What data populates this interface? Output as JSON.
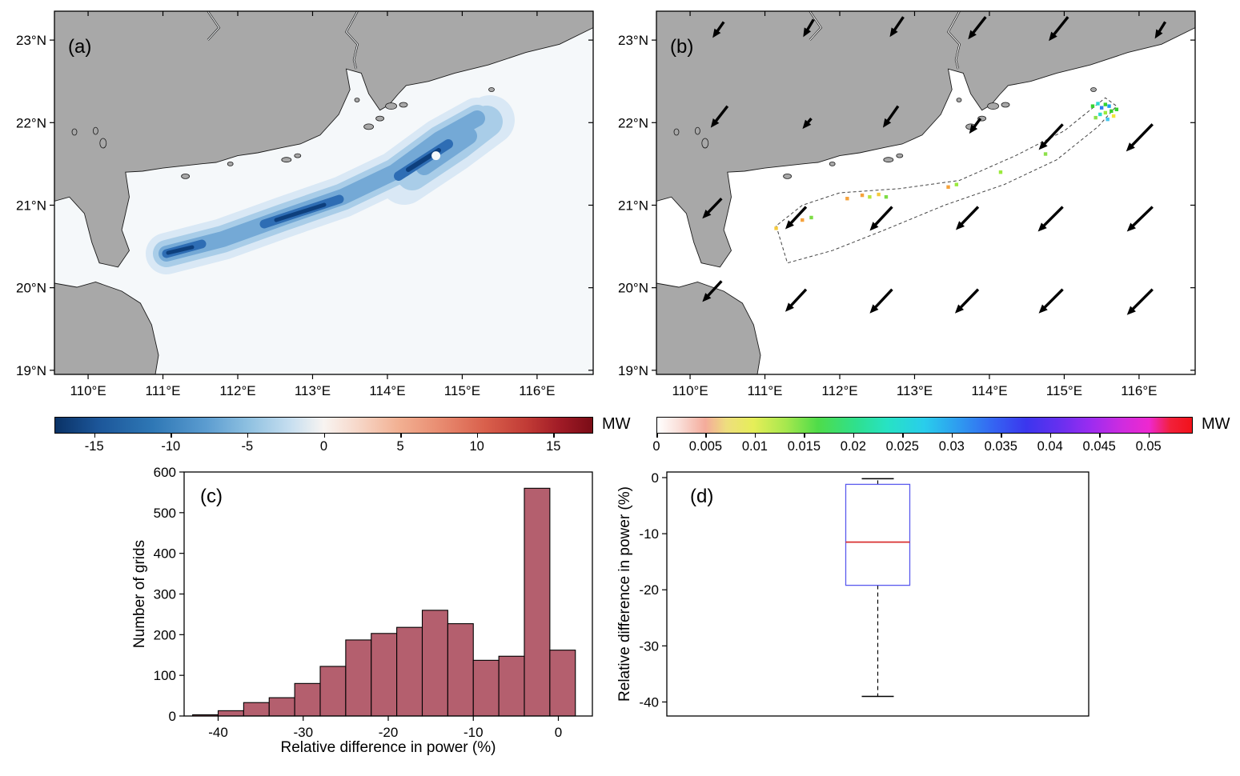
{
  "panels": {
    "a": {
      "label": "(a)"
    },
    "b": {
      "label": "(b)"
    },
    "c": {
      "label": "(c)"
    },
    "d": {
      "label": "(d)"
    }
  },
  "map_axes": {
    "lon_ticks": [
      110,
      111,
      112,
      113,
      114,
      115,
      116
    ],
    "lon_tick_labels": [
      "110°E",
      "111°E",
      "112°E",
      "113°E",
      "114°E",
      "115°E",
      "116°E"
    ],
    "lat_ticks": [
      23,
      22,
      21,
      20,
      19
    ],
    "lat_tick_labels": [
      "23°N",
      "22°N",
      "21°N",
      "20°N",
      "19°N"
    ],
    "lon_range": [
      109.55,
      116.75
    ],
    "lat_range": [
      18.95,
      23.35
    ]
  },
  "colorbars": {
    "a": {
      "unit": "MW",
      "tick_values": [
        -15,
        -10,
        -5,
        0,
        5,
        10,
        15
      ],
      "tick_labels": [
        "-15",
        "-10",
        "-5",
        "0",
        "5",
        "10",
        "15"
      ],
      "vmin": -17.6,
      "vmax": 17.6,
      "style": "diverging blue-white-red",
      "gradient_stops": [
        [
          0,
          "#0a3266"
        ],
        [
          0.08,
          "#1c5699"
        ],
        [
          0.18,
          "#2e77b5"
        ],
        [
          0.28,
          "#5b9cd0"
        ],
        [
          0.36,
          "#8fc1e1"
        ],
        [
          0.44,
          "#c8dff0"
        ],
        [
          0.5,
          "#f8f4f1"
        ],
        [
          0.56,
          "#f7d9cb"
        ],
        [
          0.64,
          "#f2b092"
        ],
        [
          0.72,
          "#e88a6f"
        ],
        [
          0.8,
          "#d9604c"
        ],
        [
          0.88,
          "#c03a35"
        ],
        [
          0.94,
          "#a01b26"
        ],
        [
          1,
          "#7a0c16"
        ]
      ]
    },
    "b": {
      "unit": "MW",
      "tick_values": [
        0,
        0.005,
        0.01,
        0.015,
        0.02,
        0.025,
        0.03,
        0.035,
        0.04,
        0.045,
        0.05
      ],
      "tick_labels": [
        "0",
        "0.005",
        "0.01",
        "0.015",
        "0.02",
        "0.025",
        "0.03",
        "0.035",
        "0.04",
        "0.045",
        "0.05"
      ],
      "vmin": 0,
      "vmax": 0.0545,
      "style": "white-pink-yellow-green-cyan-blue-purple-magenta-red",
      "gradient_stops": [
        [
          0,
          "#ffffff"
        ],
        [
          0.04,
          "#fae0da"
        ],
        [
          0.09,
          "#f4ab9b"
        ],
        [
          0.13,
          "#eede7e"
        ],
        [
          0.18,
          "#e6ee58"
        ],
        [
          0.24,
          "#a7e84e"
        ],
        [
          0.3,
          "#4fdc49"
        ],
        [
          0.37,
          "#2fe08c"
        ],
        [
          0.43,
          "#27e2c4"
        ],
        [
          0.5,
          "#29cdec"
        ],
        [
          0.57,
          "#2f96f0"
        ],
        [
          0.63,
          "#3563f2"
        ],
        [
          0.69,
          "#3b36ee"
        ],
        [
          0.75,
          "#6530ef"
        ],
        [
          0.81,
          "#9b2cf0"
        ],
        [
          0.87,
          "#cf2cdf"
        ],
        [
          0.92,
          "#ee28cf"
        ],
        [
          0.96,
          "#f2203a"
        ],
        [
          1,
          "#f2121a"
        ]
      ]
    }
  },
  "chart_data": [
    {
      "panel": "a",
      "type": "heatmap",
      "title": "",
      "units": "MW",
      "extent": {
        "lon": [
          109.55,
          116.75
        ],
        "lat": [
          18.95,
          23.35
        ]
      },
      "description": "Filled contours of wind-power difference (MW) over the northern South China Sea. A negative (blue) band, reaching about -18 MW at its core, stretches northeastward from about 111E,20.4N to 115.3E,22.2N; surrounding ocean is near 0 MW."
    },
    {
      "panel": "b",
      "type": "scatter",
      "title": "",
      "units": "MW",
      "description": "Mean wind vectors (black arrows, pointing southwestward) with small positive power-difference grid cells (colored dots, 0-0.05 MW) along the dashed wind-farm outline.",
      "arrows": [
        [
          110.45,
          23.22,
          -14,
          20
        ],
        [
          111.65,
          23.25,
          -13,
          22
        ],
        [
          112.85,
          23.28,
          -17,
          25
        ],
        [
          113.95,
          23.28,
          -22,
          28
        ],
        [
          115.05,
          23.28,
          -24,
          30
        ],
        [
          116.35,
          23.22,
          -13,
          21
        ],
        [
          110.5,
          22.2,
          -21,
          27
        ],
        [
          111.62,
          22.05,
          -11,
          13
        ],
        [
          112.78,
          22.2,
          -19,
          27
        ],
        [
          113.88,
          22.05,
          -14,
          19
        ],
        [
          114.98,
          21.98,
          -30,
          32
        ],
        [
          116.18,
          21.98,
          -33,
          34
        ],
        [
          110.42,
          21.08,
          -24,
          25
        ],
        [
          111.55,
          20.98,
          -26,
          28
        ],
        [
          112.7,
          20.98,
          -28,
          30
        ],
        [
          113.85,
          20.98,
          -28,
          29
        ],
        [
          114.98,
          20.98,
          -31,
          31
        ],
        [
          116.18,
          20.98,
          -32,
          31
        ],
        [
          110.42,
          20.08,
          -24,
          26
        ],
        [
          111.55,
          19.98,
          -26,
          28
        ],
        [
          112.7,
          19.98,
          -28,
          30
        ],
        [
          113.85,
          19.98,
          -29,
          30
        ],
        [
          114.98,
          19.98,
          -30,
          30
        ],
        [
          116.18,
          19.98,
          -32,
          32
        ]
      ],
      "cells": [
        [
          115.38,
          22.2,
          "#35d22f"
        ],
        [
          115.45,
          22.23,
          "#2bd9d0"
        ],
        [
          115.5,
          22.18,
          "#2f7df2"
        ],
        [
          115.55,
          22.22,
          "#35d22f"
        ],
        [
          115.6,
          22.2,
          "#1f9df0"
        ],
        [
          115.63,
          22.14,
          "#35d22f"
        ],
        [
          115.55,
          22.12,
          "#9bea3d"
        ],
        [
          115.48,
          22.1,
          "#2bd9d0"
        ],
        [
          115.66,
          22.08,
          "#f2e63a"
        ],
        [
          115.7,
          22.16,
          "#35d22f"
        ],
        [
          115.42,
          22.06,
          "#8de04a"
        ],
        [
          115.58,
          22.04,
          "#43c7ef"
        ],
        [
          112.3,
          21.12,
          "#f5a23c"
        ],
        [
          112.4,
          21.1,
          "#b9e33c"
        ],
        [
          112.52,
          21.13,
          "#f5ca3c"
        ],
        [
          112.62,
          21.1,
          "#7ddc45"
        ],
        [
          113.45,
          21.22,
          "#f5a23c"
        ],
        [
          113.56,
          21.25,
          "#9bea3d"
        ],
        [
          111.5,
          20.82,
          "#f5a23c"
        ],
        [
          111.62,
          20.85,
          "#7ddc45"
        ],
        [
          111.15,
          20.72,
          "#f5ca3c"
        ],
        [
          114.15,
          21.4,
          "#9bea3d"
        ],
        [
          112.1,
          21.08,
          "#f5a23c"
        ],
        [
          114.75,
          21.62,
          "#8de04a"
        ]
      ]
    },
    {
      "panel": "c",
      "type": "bar",
      "title": "",
      "xlabel": "Relative difference in power (%)",
      "ylabel": "Number of grids",
      "bin_edges": [
        -43,
        -40,
        -37,
        -34,
        -31,
        -28,
        -25,
        -22,
        -19,
        -16,
        -13,
        -10,
        -7,
        -4,
        -1,
        2
      ],
      "counts": [
        3,
        13,
        33,
        45,
        80,
        122,
        187,
        203,
        218,
        260,
        227,
        137,
        147,
        560,
        162
      ],
      "xlim": [
        -44,
        4
      ],
      "ylim": [
        0,
        600
      ],
      "xticks": [
        -40,
        -30,
        -20,
        -10,
        0
      ],
      "yticks": [
        0,
        100,
        200,
        300,
        400,
        500,
        600
      ],
      "bar_color": "#b45f6e",
      "bar_edge_color": "#000000"
    },
    {
      "panel": "d",
      "type": "box",
      "title": "",
      "xlabel": "",
      "ylabel": "Relative difference in power (%)",
      "ylim": [
        -42.5,
        1
      ],
      "yticks": [
        0,
        -10,
        -20,
        -30,
        -40
      ],
      "ytick_labels": [
        "0",
        "-10",
        "-20",
        "-30",
        "-40"
      ],
      "whisker_low": -39,
      "q1": -19.2,
      "median": -11.5,
      "q3": -1.2,
      "whisker_high": -0.2,
      "box_color": "#5a5aee",
      "median_color": "#d93030",
      "whisker_color": "#000000"
    }
  ]
}
